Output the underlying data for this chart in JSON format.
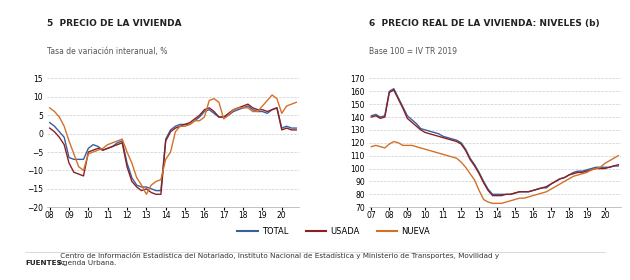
{
  "chart1_title": "5  PRECIO DE LA VIVIENDA",
  "chart1_subtitle": "Tasa de variación interanual, %",
  "chart2_title": "6  PRECIO REAL DE LA VIVIENDA: NIVELES (b)",
  "chart2_subtitle": "Base 100 = IV TR 2019",
  "legend_labels": [
    "TOTAL",
    "USADA",
    "NUEVA"
  ],
  "color_total": "#3a5fa0",
  "color_usada": "#8b2020",
  "color_nueva": "#d4702a",
  "footer_bold": "FUENTES:",
  "footer_normal": " Centro de Información Estadística del Notariado, Instituto Nacional de Estadística y Ministerio de Transportes, Movilidad y\nAgenda Urbana.",
  "chart1_ylim": [
    -20,
    15
  ],
  "chart1_yticks": [
    -20,
    -15,
    -10,
    -5,
    0,
    5,
    10,
    15
  ],
  "chart1_xtick_labels": [
    "08",
    "09",
    "10",
    "11",
    "12",
    "13",
    "14",
    "15",
    "16",
    "17",
    "18",
    "19",
    "20"
  ],
  "chart2_ylim": [
    70,
    170
  ],
  "chart2_yticks": [
    70,
    80,
    90,
    100,
    110,
    120,
    130,
    140,
    150,
    160,
    170
  ],
  "chart2_xtick_labels": [
    "07",
    "08",
    "09",
    "10",
    "11",
    "12",
    "13",
    "14",
    "15",
    "16",
    "17",
    "18",
    "19",
    "20"
  ],
  "background_color": "#ffffff",
  "grid_color": "#cccccc",
  "line_width": 1.0
}
